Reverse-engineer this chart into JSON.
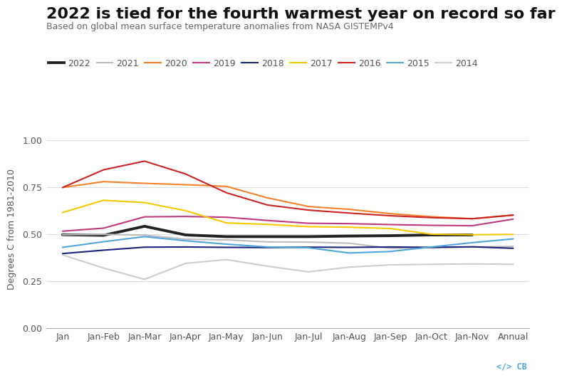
{
  "title": "2022 is tied for the fourth warmest year on record so far",
  "subtitle": "Based on global mean surface temperature anomalies from NASA GISTEMPv4",
  "ylabel": "Degrees C from 1981-2010",
  "x_labels": [
    "Jan",
    "Jan-Feb",
    "Jan-Mar",
    "Jan-Apr",
    "Jan-May",
    "Jan-Jun",
    "Jan-Jul",
    "Jan-Aug",
    "Jan-Sep",
    "Jan-Oct",
    "Jan-Nov",
    "Annual"
  ],
  "ylim": [
    0.0,
    1.05
  ],
  "yticks": [
    0.0,
    0.25,
    0.5,
    0.75,
    1.0
  ],
  "series": {
    "2022": {
      "color": "#222222",
      "linewidth": 2.8,
      "values": [
        0.497,
        0.494,
        0.542,
        0.496,
        0.487,
        0.487,
        0.487,
        0.49,
        0.492,
        0.496,
        0.496,
        null
      ]
    },
    "2021": {
      "color": "#bbbbbb",
      "linewidth": 1.5,
      "values": [
        0.497,
        0.499,
        0.495,
        0.473,
        0.47,
        0.459,
        0.458,
        0.452,
        0.425,
        0.428,
        0.432,
        0.435
      ]
    },
    "2020": {
      "color": "#f4812a",
      "linewidth": 1.5,
      "values": [
        0.748,
        0.779,
        0.77,
        0.763,
        0.754,
        0.693,
        0.647,
        0.632,
        0.609,
        0.593,
        0.582,
        0.602
      ]
    },
    "2019": {
      "color": "#c0397f",
      "linewidth": 1.5,
      "values": [
        0.516,
        0.532,
        0.592,
        0.594,
        0.59,
        0.573,
        0.558,
        0.556,
        0.551,
        0.547,
        0.545,
        0.58
      ]
    },
    "2018": {
      "color": "#1a237e",
      "linewidth": 1.5,
      "values": [
        0.397,
        0.415,
        0.431,
        0.432,
        0.43,
        0.429,
        0.431,
        0.43,
        0.432,
        0.43,
        0.433,
        0.425
      ]
    },
    "2017": {
      "color": "#f5c800",
      "linewidth": 1.5,
      "values": [
        0.615,
        0.68,
        0.668,
        0.625,
        0.56,
        0.552,
        0.54,
        0.537,
        0.53,
        0.5,
        0.497,
        0.499
      ]
    },
    "2016": {
      "color": "#cc2222",
      "linewidth": 1.5,
      "values": [
        0.748,
        0.842,
        0.888,
        0.82,
        0.72,
        0.655,
        0.628,
        0.612,
        0.598,
        0.588,
        0.582,
        0.601
      ]
    },
    "2015": {
      "color": "#4ea6dc",
      "linewidth": 1.5,
      "values": [
        0.43,
        0.46,
        0.487,
        0.465,
        0.447,
        0.432,
        0.428,
        0.4,
        0.408,
        0.432,
        0.455,
        0.475
      ]
    },
    "2014": {
      "color": "#cccccc",
      "linewidth": 1.5,
      "values": [
        0.39,
        0.32,
        0.26,
        0.345,
        0.365,
        0.33,
        0.3,
        0.325,
        0.337,
        0.34,
        0.342,
        0.34
      ]
    }
  },
  "legend_order": [
    "2022",
    "2021",
    "2020",
    "2019",
    "2018",
    "2017",
    "2016",
    "2015",
    "2014"
  ],
  "background_color": "#ffffff",
  "grid_color": "#dddddd",
  "title_fontsize": 16,
  "subtitle_fontsize": 9,
  "label_fontsize": 9,
  "tick_fontsize": 9
}
